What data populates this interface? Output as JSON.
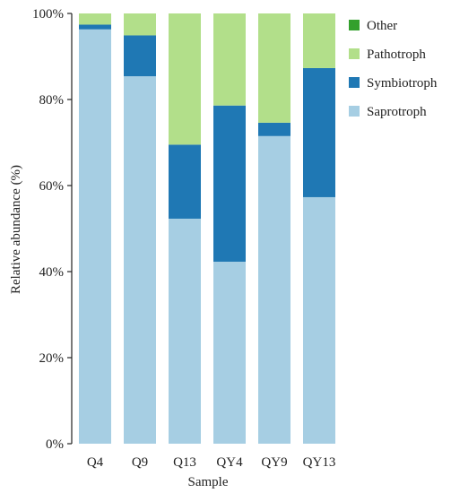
{
  "chart_data": {
    "type": "bar",
    "stacked": true,
    "xlabel": "Sample",
    "ylabel": "Relative abundance (%)",
    "ylim": [
      0,
      100
    ],
    "y_ticks": [
      0,
      20,
      40,
      60,
      80,
      100
    ],
    "y_tick_labels": [
      "0%",
      "20%",
      "40%",
      "60%",
      "80%",
      "100%"
    ],
    "grid": false,
    "legend_position": "top-right",
    "categories": [
      "Q4",
      "Q9",
      "Q13",
      "QY4",
      "QY9",
      "QY13"
    ],
    "series": [
      {
        "name": "Saprotroph",
        "color": "#a6cee3",
        "values": [
          96.3,
          85.4,
          52.3,
          42.3,
          71.5,
          57.3
        ]
      },
      {
        "name": "Symbiotroph",
        "color": "#1f78b4",
        "values": [
          1.1,
          9.5,
          17.2,
          36.3,
          3.1,
          30.0
        ]
      },
      {
        "name": "Pathotroph",
        "color": "#b2df8a",
        "values": [
          2.6,
          5.1,
          30.5,
          21.4,
          25.4,
          12.7
        ]
      },
      {
        "name": "Other",
        "color": "#33a02c",
        "values": [
          0,
          0,
          0,
          0,
          0,
          0
        ]
      }
    ],
    "legend_order": [
      "Other",
      "Pathotroph",
      "Symbiotroph",
      "Saprotroph"
    ]
  }
}
